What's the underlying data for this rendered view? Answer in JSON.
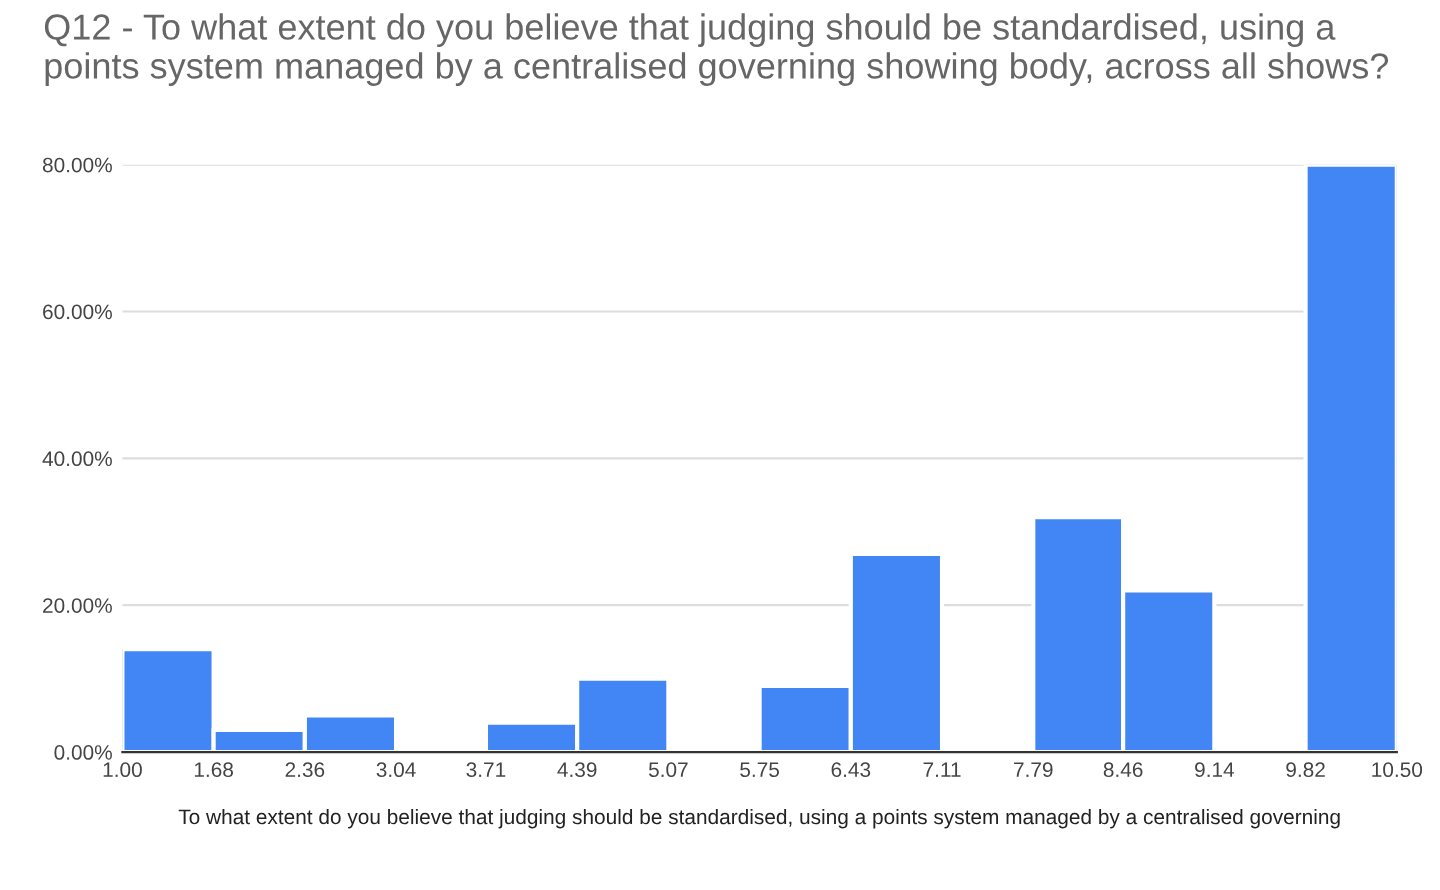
{
  "chart_data": {
    "type": "histogram",
    "title": "Q12 - To what extent do you believe that judging should be standardised, using a points system managed by a centralised governing showing body, across all shows?",
    "xlabel": "To what extent do you believe that judging should be standardised, using a points system managed by a centralised governing",
    "bins": [
      1.0,
      1.68,
      2.36,
      3.04,
      3.71,
      4.39,
      5.07,
      5.75,
      6.43,
      7.11,
      7.79,
      8.46,
      9.14,
      9.82,
      10.5
    ],
    "values": [
      14,
      3,
      5,
      0,
      4,
      10,
      0,
      9,
      27,
      0,
      32,
      22,
      0,
      80
    ],
    "color": "#4285f4",
    "xlim": [
      1.0,
      10.5
    ],
    "xticks": [
      {
        "value": 1.0,
        "label": "1.00"
      },
      {
        "value": 1.68,
        "label": "1.68"
      },
      {
        "value": 2.36,
        "label": "2.36"
      },
      {
        "value": 3.04,
        "label": "3.04"
      },
      {
        "value": 3.71,
        "label": "3.71"
      },
      {
        "value": 4.39,
        "label": "4.39"
      },
      {
        "value": 5.07,
        "label": "5.07"
      },
      {
        "value": 5.75,
        "label": "5.75"
      },
      {
        "value": 6.43,
        "label": "6.43"
      },
      {
        "value": 7.11,
        "label": "7.11"
      },
      {
        "value": 7.79,
        "label": "7.79"
      },
      {
        "value": 8.46,
        "label": "8.46"
      },
      {
        "value": 9.14,
        "label": "9.14"
      },
      {
        "value": 9.82,
        "label": "9.82"
      },
      {
        "value": 10.5,
        "label": "10.50"
      }
    ],
    "ylim": [
      0,
      80
    ],
    "yticks": [
      {
        "value": 0,
        "label": "0.00%"
      },
      {
        "value": 20,
        "label": "20.00%"
      },
      {
        "value": 40,
        "label": "40.00%"
      },
      {
        "value": 60,
        "label": "60.00%"
      },
      {
        "value": 80,
        "label": "80.00%"
      }
    ],
    "grid": "y"
  }
}
